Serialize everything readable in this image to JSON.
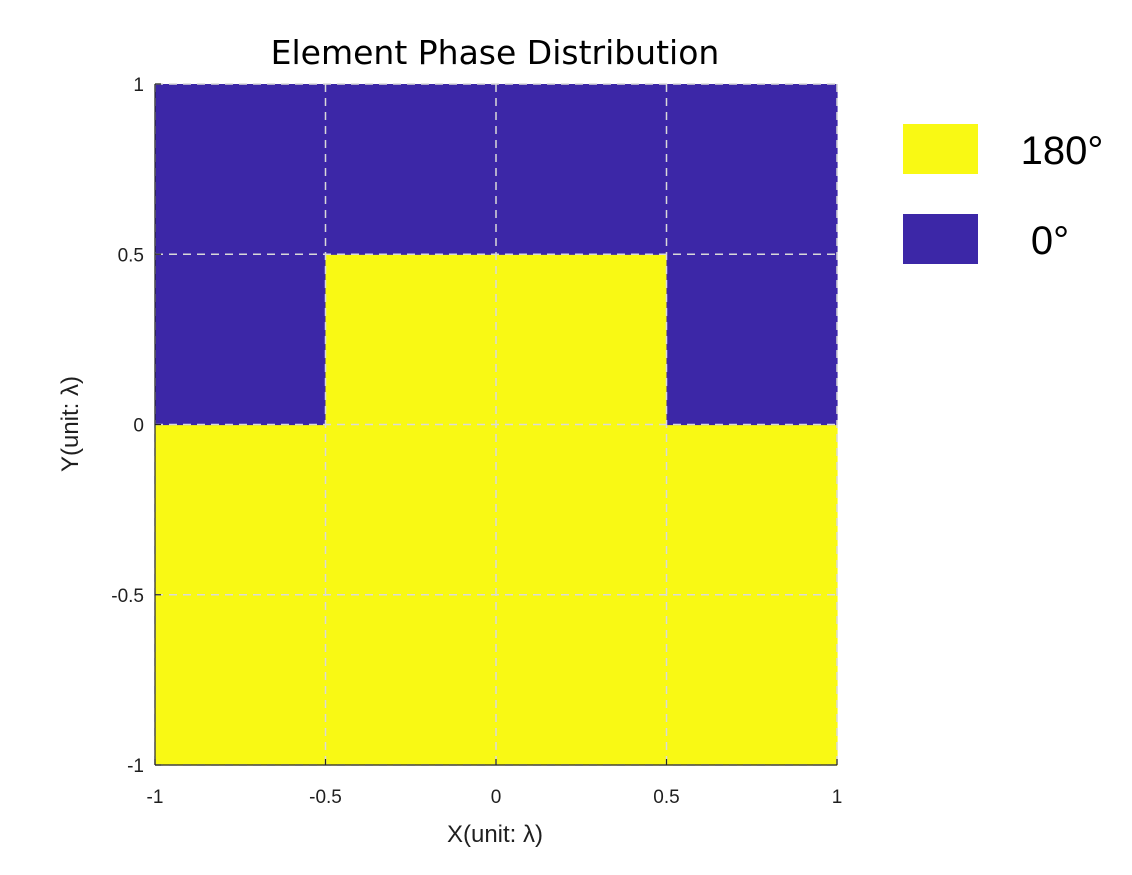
{
  "chart_data": {
    "type": "heatmap",
    "title": "Element Phase Distribution",
    "xlabel": "X(unit: λ)",
    "ylabel": "Y(unit: λ)",
    "xlim": [
      -1,
      1
    ],
    "ylim": [
      -1,
      1
    ],
    "grid": true,
    "x_edges": [
      -1,
      -0.5,
      0,
      0.5,
      1
    ],
    "y_edges": [
      -1,
      -0.5,
      0,
      0.5,
      1
    ],
    "x_ticks": [
      -1,
      -0.5,
      0,
      0.5,
      1
    ],
    "y_ticks": [
      -1,
      -0.5,
      0,
      0.5,
      1
    ],
    "x_tick_labels": [
      "-1",
      "-0.5",
      "0",
      "0.5",
      "1"
    ],
    "y_tick_labels": [
      "-1",
      "-0.5",
      "0",
      "0.5",
      "1"
    ],
    "phase_grid_deg": [
      [
        180,
        180,
        180,
        180
      ],
      [
        180,
        180,
        180,
        180
      ],
      [
        0,
        180,
        180,
        0
      ],
      [
        0,
        0,
        0,
        0
      ]
    ],
    "phase_grid_row_order": "bottom-to-top",
    "legend": [
      {
        "label": "180°",
        "value": 180,
        "color": "#f9f914"
      },
      {
        "label": "0°",
        "value": 0,
        "color": "#3c27a7"
      }
    ],
    "legend_placement": "right"
  }
}
